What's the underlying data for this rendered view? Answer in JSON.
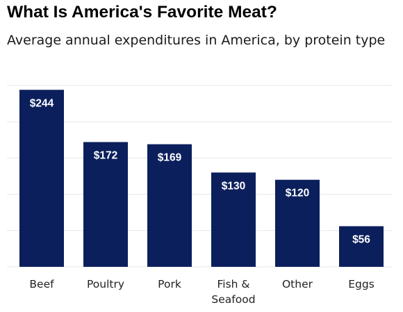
{
  "chart_data": {
    "type": "bar",
    "title": "What Is America's Favorite Meat?",
    "subtitle": "Average annual expenditures in America, by protein type",
    "categories": [
      [
        "Beef"
      ],
      [
        "Poultry"
      ],
      [
        "Pork"
      ],
      [
        "Fish &",
        "Seafood"
      ],
      [
        "Other"
      ],
      [
        "Eggs"
      ]
    ],
    "values": [
      244,
      172,
      169,
      130,
      120,
      56
    ],
    "value_labels": [
      "$244",
      "$172",
      "$169",
      "$130",
      "$120",
      "$56"
    ],
    "ylim": [
      0,
      250
    ],
    "grid": true,
    "colors": {
      "bar": "#0b1f5c",
      "label": "#ffffff",
      "grid": "#e6e6e6"
    }
  }
}
